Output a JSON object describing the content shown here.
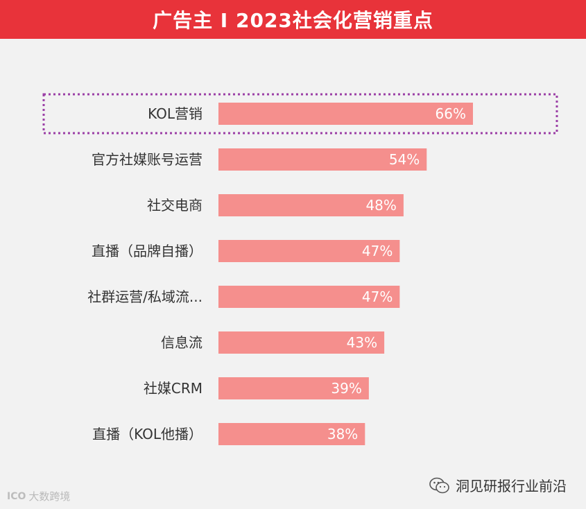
{
  "header": {
    "title": "广告主 I 2023社会化营销重点"
  },
  "colors": {
    "header_bg": "#e8333a",
    "bar": "#f58f8d",
    "highlight_border": "#9b3fa6"
  },
  "chart_data": {
    "type": "bar",
    "orientation": "horizontal",
    "categories": [
      "KOL营销",
      "官方社媒账号运营",
      "社交电商",
      "直播（品牌自播）",
      "社群运营/私域流...",
      "信息流",
      "社媒CRM",
      "直播（KOL他播）"
    ],
    "values": [
      66,
      54,
      48,
      47,
      47,
      43,
      39,
      38
    ],
    "value_labels": [
      "66%",
      "54%",
      "48%",
      "47%",
      "47%",
      "43%",
      "39%",
      "38%"
    ],
    "unit": "%",
    "xlim": [
      0,
      100
    ],
    "highlighted_category": "KOL营销",
    "grid": false,
    "legend": "none"
  },
  "footer": {
    "left_logo": "ICO",
    "left_text": "大数跨境",
    "right_icon": "wechat-icon",
    "right_text": "洞见研报行业前沿"
  }
}
